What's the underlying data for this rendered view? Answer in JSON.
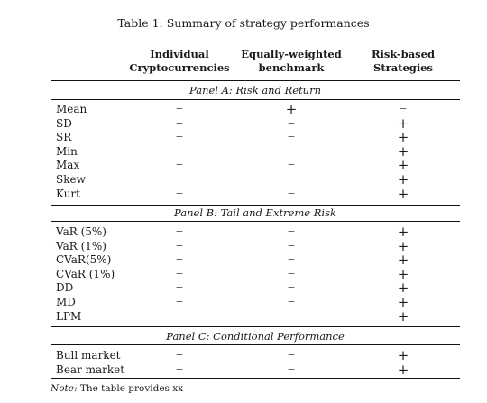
{
  "caption": "Table 1: Summary of strategy performances",
  "headers": [
    {
      "line1": "Individual",
      "line2": "Cryptocurrencies"
    },
    {
      "line1": "Equally-weighted",
      "line2": "benchmark"
    },
    {
      "line1": "Risk-based",
      "line2": "Strategies"
    }
  ],
  "panels": [
    {
      "title": "Panel A: Risk and Return",
      "rows": [
        {
          "label": "Mean",
          "cells": [
            "−",
            "+",
            "−"
          ]
        },
        {
          "label": "SD",
          "cells": [
            "−",
            "−",
            "+"
          ]
        },
        {
          "label": "SR",
          "cells": [
            "−",
            "−",
            "+"
          ]
        },
        {
          "label": "Min",
          "cells": [
            "−",
            "−",
            "+"
          ]
        },
        {
          "label": "Max",
          "cells": [
            "−",
            "−",
            "+"
          ]
        },
        {
          "label": "Skew",
          "cells": [
            "−",
            "−",
            "+"
          ]
        },
        {
          "label": "Kurt",
          "cells": [
            "−",
            "−",
            "+"
          ]
        }
      ]
    },
    {
      "title": "Panel B: Tail and Extreme Risk",
      "rows": [
        {
          "label": "VaR (5%)",
          "cells": [
            "−",
            "−",
            "+"
          ]
        },
        {
          "label": "VaR (1%)",
          "cells": [
            "−",
            "−",
            "+"
          ]
        },
        {
          "label": "CVaR(5%)",
          "cells": [
            "−",
            "−",
            "+"
          ]
        },
        {
          "label": "CVaR (1%)",
          "cells": [
            "−",
            "−",
            "+"
          ]
        },
        {
          "label": "DD",
          "cells": [
            "−",
            "−",
            "+"
          ]
        },
        {
          "label": "MD",
          "cells": [
            "−",
            "−",
            "+"
          ]
        },
        {
          "label": "LPM",
          "cells": [
            "−",
            "−",
            "+"
          ]
        }
      ]
    },
    {
      "title": "Panel C: Conditional Performance",
      "rows": [
        {
          "label": "Bull market",
          "cells": [
            "−",
            "−",
            "+"
          ]
        },
        {
          "label": "Bear market",
          "cells": [
            "−",
            "−",
            "+"
          ]
        }
      ]
    }
  ],
  "note": {
    "prefix": "Note:",
    "text": "The table provides xx"
  }
}
